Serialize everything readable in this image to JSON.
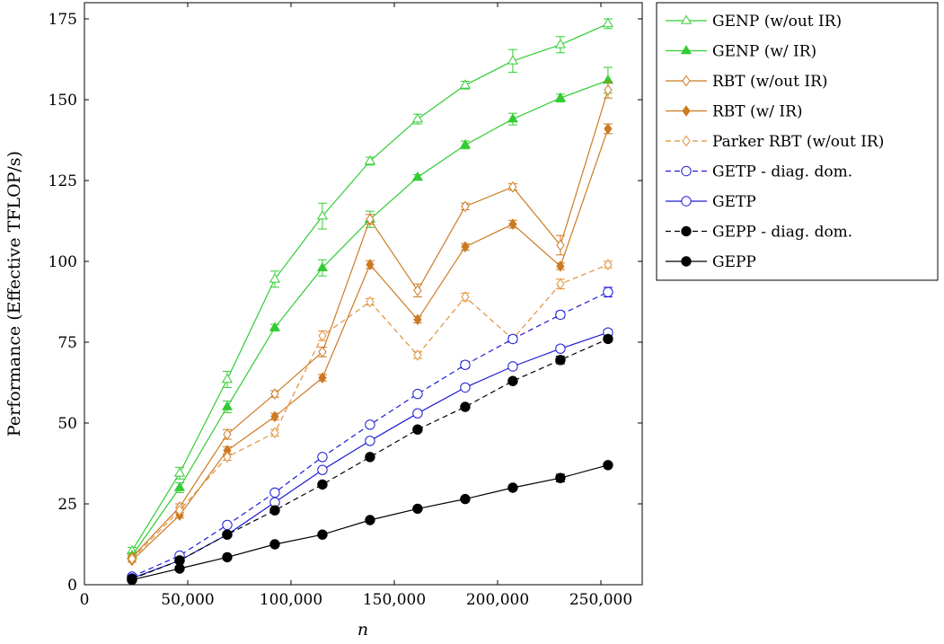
{
  "chart_data": {
    "type": "line",
    "xlabel": "n",
    "ylabel": "Performance (Effective TFLOP/s)",
    "xlim": [
      0,
      270000
    ],
    "ylim": [
      0,
      180
    ],
    "x_ticks": [
      0,
      50000,
      100000,
      150000,
      200000,
      250000
    ],
    "x_tick_labels": [
      "0",
      "50,000",
      "100,000",
      "150,000",
      "200,000",
      "250,000"
    ],
    "y_ticks": [
      0,
      25,
      50,
      75,
      100,
      125,
      150,
      175
    ],
    "y_tick_labels": [
      "0",
      "25",
      "50",
      "75",
      "100",
      "125",
      "150",
      "175"
    ],
    "grid": false,
    "legend_position": "outside-right-top",
    "x": [
      23040,
      46080,
      69120,
      92160,
      115200,
      138240,
      161280,
      184320,
      207360,
      230400,
      253440
    ],
    "series": [
      {
        "name": "GENP (w/out IR)",
        "color": "#33cc33",
        "marker": "triangle-open",
        "dash": "solid",
        "values": [
          10.5,
          34.5,
          63.5,
          94.5,
          114,
          131,
          144,
          154.5,
          162,
          167,
          173.5
        ],
        "errors": [
          1,
          1.8,
          2.5,
          2.5,
          4,
          1.2,
          1.5,
          1.2,
          3.5,
          2.5,
          1.5
        ]
      },
      {
        "name": "GENP (w/ IR)",
        "color": "#33cc33",
        "marker": "triangle-filled",
        "dash": "solid",
        "values": [
          9,
          30,
          55,
          79.5,
          98,
          113,
          126,
          136,
          144,
          150.5,
          156
        ],
        "errors": [
          0.8,
          1.5,
          1.8,
          1,
          2.5,
          2.5,
          0.8,
          1.2,
          1.8,
          1.2,
          4
        ]
      },
      {
        "name": "RBT (w/out IR)",
        "color": "#cc7a22",
        "marker": "diamond-open",
        "dash": "solid",
        "values": [
          8.5,
          24,
          46.5,
          59,
          72,
          113,
          91,
          117,
          123,
          105,
          153
        ],
        "errors": [
          0.5,
          1,
          1.5,
          1,
          1.5,
          1.5,
          2,
          1,
          1,
          3,
          2.5
        ]
      },
      {
        "name": "RBT (w/ IR)",
        "color": "#cc7a22",
        "marker": "diamond-filled",
        "dash": "solid",
        "values": [
          7.5,
          21.5,
          41.5,
          52,
          64,
          99,
          82,
          104.5,
          111.5,
          98.5,
          141
        ],
        "errors": [
          0.5,
          0.8,
          1.2,
          1,
          1,
          1.2,
          1,
          1,
          1.2,
          1,
          1.5
        ]
      },
      {
        "name": "Parker RBT (w/out IR)",
        "color": "#e0913a",
        "marker": "diamond-open",
        "dash": "dashed",
        "values": [
          8,
          23,
          39.5,
          47,
          77,
          87.5,
          71,
          89,
          76,
          93,
          99
        ],
        "errors": [
          0.5,
          0.8,
          1,
          1,
          1.5,
          1,
          1,
          1.2,
          1,
          1.5,
          1
        ]
      },
      {
        "name": "GETP - diag. dom.",
        "color": "#1c1cd6",
        "marker": "circle-open",
        "dash": "dashed",
        "values": [
          2.5,
          9,
          18.5,
          28.5,
          39.5,
          49.5,
          59,
          68,
          76,
          83.5,
          90.5
        ],
        "errors": [
          0.3,
          0.4,
          0.5,
          0.6,
          0.6,
          0.6,
          0.8,
          1,
          1,
          1,
          1.5
        ]
      },
      {
        "name": "GETP",
        "color": "#1c1cd6",
        "marker": "circle-open",
        "dash": "solid",
        "values": [
          2,
          7.5,
          15.5,
          25.5,
          35.5,
          44.5,
          53,
          61,
          67.5,
          73,
          78
        ],
        "errors": [
          0.3,
          0.4,
          0.5,
          0.5,
          0.6,
          0.6,
          0.6,
          0.6,
          0.8,
          0.8,
          0.8
        ]
      },
      {
        "name": "GEPP - diag. dom.",
        "color": "#000000",
        "marker": "circle-filled",
        "dash": "dashed",
        "values": [
          1.8,
          7.5,
          15.5,
          23,
          31,
          39.5,
          48,
          55,
          63,
          69.5,
          76
        ],
        "errors": [
          0.2,
          0.4,
          0.5,
          0.5,
          0.5,
          0.6,
          0.6,
          0.6,
          0.6,
          1.2,
          0.8
        ]
      },
      {
        "name": "GEPP",
        "color": "#000000",
        "marker": "circle-filled",
        "dash": "solid",
        "values": [
          1.5,
          5,
          8.5,
          12.5,
          15.5,
          20,
          23.5,
          26.5,
          30,
          33,
          37
        ],
        "errors": [
          0.2,
          0.3,
          0.3,
          0.3,
          0.4,
          0.4,
          0.4,
          0.5,
          0.5,
          1.2,
          0.5
        ]
      }
    ]
  }
}
